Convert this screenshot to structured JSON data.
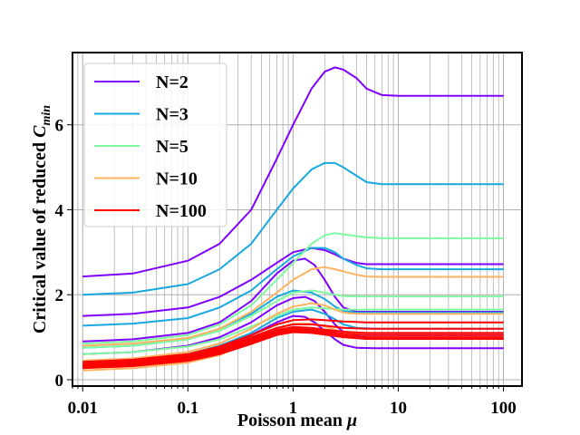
{
  "chart_data": {
    "type": "line",
    "title": "",
    "xlabel": "Poisson mean μ",
    "ylabel": "Critical value of reduced C_min",
    "ylabel_parts": {
      "text": "Critical value of reduced ",
      "math": "C",
      "sub": "min"
    },
    "xlabel_parts": {
      "text": "Poisson mean ",
      "math": "μ"
    },
    "xscale": "log",
    "xlim": [
      0.008,
      150
    ],
    "ylim": [
      -0.15,
      7.7
    ],
    "xticks": [
      {
        "value": 0.01,
        "label": "0.01"
      },
      {
        "value": 0.1,
        "label": "0.1"
      },
      {
        "value": 1,
        "label": "1"
      },
      {
        "value": 10,
        "label": "10"
      },
      {
        "value": 100,
        "label": "100"
      }
    ],
    "yticks": [
      {
        "value": 0,
        "label": "0"
      },
      {
        "value": 2,
        "label": "2"
      },
      {
        "value": 4,
        "label": "4"
      },
      {
        "value": 6,
        "label": "6"
      }
    ],
    "grid": true,
    "legend_position": "upper-left",
    "groups": [
      {
        "name": "N=2",
        "color": "#8000ff",
        "curves": [
          {
            "x": [
              0.01,
              0.03,
              0.1,
              0.2,
              0.4,
              0.7,
              1,
              1.5,
              2,
              2.5,
              3,
              4,
              5,
              7,
              10,
              20,
              100
            ],
            "y": [
              2.43,
              2.5,
              2.8,
              3.2,
              4.0,
              5.2,
              6.0,
              6.85,
              7.25,
              7.35,
              7.3,
              7.1,
              6.85,
              6.7,
              6.68,
              6.68,
              6.68
            ]
          },
          {
            "x": [
              0.01,
              0.03,
              0.1,
              0.2,
              0.4,
              0.7,
              1,
              1.5,
              2,
              2.5,
              3,
              4,
              5,
              7,
              10,
              20,
              100
            ],
            "y": [
              1.5,
              1.55,
              1.7,
              1.95,
              2.35,
              2.75,
              3.0,
              3.1,
              3.05,
              2.95,
              2.85,
              2.75,
              2.72,
              2.72,
              2.72,
              2.72,
              2.72
            ]
          },
          {
            "x": [
              0.01,
              0.03,
              0.1,
              0.2,
              0.4,
              0.7,
              1,
              1.3,
              1.6,
              2,
              2.5,
              3,
              4,
              6,
              10,
              100
            ],
            "y": [
              0.9,
              0.95,
              1.1,
              1.35,
              1.85,
              2.5,
              2.8,
              2.85,
              2.7,
              2.35,
              1.95,
              1.7,
              1.6,
              1.6,
              1.6,
              1.6
            ]
          },
          {
            "x": [
              0.01,
              0.03,
              0.1,
              0.2,
              0.4,
              0.7,
              1,
              1.3,
              1.6,
              2,
              2.5,
              3,
              4,
              6,
              10,
              100
            ],
            "y": [
              0.6,
              0.65,
              0.8,
              1.0,
              1.35,
              1.75,
              1.92,
              1.95,
              1.85,
              1.6,
              1.3,
              1.12,
              1.05,
              1.05,
              1.05,
              1.05
            ]
          },
          {
            "x": [
              0.01,
              0.03,
              0.1,
              0.2,
              0.4,
              0.7,
              1,
              1.3,
              1.6,
              2,
              2.5,
              3,
              4,
              6,
              10,
              100
            ],
            "y": [
              0.35,
              0.4,
              0.55,
              0.75,
              1.05,
              1.35,
              1.5,
              1.48,
              1.35,
              1.15,
              0.95,
              0.82,
              0.75,
              0.74,
              0.74,
              0.74
            ]
          }
        ]
      },
      {
        "name": "N=3",
        "color": "#18a8e0",
        "curves": [
          {
            "x": [
              0.01,
              0.03,
              0.1,
              0.2,
              0.4,
              0.7,
              1,
              1.5,
              2,
              2.5,
              3,
              4,
              5,
              7,
              10,
              20,
              100
            ],
            "y": [
              2.0,
              2.05,
              2.25,
              2.6,
              3.2,
              4.0,
              4.5,
              4.95,
              5.1,
              5.1,
              5.0,
              4.8,
              4.65,
              4.6,
              4.6,
              4.6,
              4.6
            ]
          },
          {
            "x": [
              0.01,
              0.03,
              0.1,
              0.2,
              0.4,
              0.7,
              1,
              1.5,
              2,
              2.5,
              3,
              4,
              5,
              7,
              10,
              20,
              100
            ],
            "y": [
              1.27,
              1.32,
              1.45,
              1.7,
              2.1,
              2.6,
              2.9,
              3.1,
              3.1,
              3.0,
              2.85,
              2.7,
              2.62,
              2.6,
              2.6,
              2.6,
              2.6
            ]
          },
          {
            "x": [
              0.01,
              0.03,
              0.1,
              0.2,
              0.4,
              0.7,
              1,
              1.5,
              2,
              2.5,
              3,
              4,
              6,
              10,
              100
            ],
            "y": [
              0.75,
              0.8,
              0.95,
              1.2,
              1.55,
              1.95,
              2.1,
              2.05,
              1.9,
              1.72,
              1.62,
              1.58,
              1.58,
              1.58,
              1.58
            ]
          },
          {
            "x": [
              0.01,
              0.03,
              0.1,
              0.2,
              0.4,
              0.7,
              1,
              1.5,
              2,
              2.5,
              3,
              4,
              6,
              10,
              100
            ],
            "y": [
              0.42,
              0.47,
              0.6,
              0.8,
              1.1,
              1.45,
              1.6,
              1.65,
              1.55,
              1.42,
              1.3,
              1.22,
              1.2,
              1.2,
              1.2
            ]
          }
        ]
      },
      {
        "name": "N=5",
        "color": "#7ffaa0",
        "curves": [
          {
            "x": [
              0.01,
              0.03,
              0.1,
              0.2,
              0.4,
              0.7,
              1,
              1.5,
              2,
              2.5,
              3,
              4,
              5,
              7,
              10,
              20,
              100
            ],
            "y": [
              0.85,
              0.9,
              1.05,
              1.3,
              1.75,
              2.35,
              2.75,
              3.2,
              3.4,
              3.45,
              3.42,
              3.38,
              3.35,
              3.33,
              3.33,
              3.33,
              3.33
            ]
          },
          {
            "x": [
              0.01,
              0.03,
              0.1,
              0.2,
              0.4,
              0.7,
              1,
              1.5,
              2,
              2.5,
              3,
              4,
              6,
              10,
              100
            ],
            "y": [
              0.75,
              0.8,
              0.95,
              1.15,
              1.5,
              1.85,
              2.05,
              2.1,
              2.05,
              2.0,
              1.97,
              1.96,
              1.96,
              1.96,
              1.96
            ]
          },
          {
            "x": [
              0.01,
              0.03,
              0.1,
              0.2,
              0.4,
              0.7,
              1,
              1.5,
              2,
              2.5,
              3,
              4,
              6,
              10,
              100
            ],
            "y": [
              0.6,
              0.65,
              0.78,
              0.95,
              1.25,
              1.5,
              1.65,
              1.7,
              1.68,
              1.66,
              1.65,
              1.65,
              1.65,
              1.65,
              1.65
            ]
          }
        ]
      },
      {
        "name": "N=10",
        "color": "#ffb360",
        "curves": [
          {
            "x": [
              0.01,
              0.03,
              0.1,
              0.2,
              0.4,
              0.7,
              1,
              1.5,
              2,
              2.5,
              3,
              4,
              5,
              7,
              10,
              20,
              100
            ],
            "y": [
              0.8,
              0.85,
              0.98,
              1.2,
              1.6,
              2.05,
              2.35,
              2.6,
              2.65,
              2.6,
              2.55,
              2.47,
              2.43,
              2.42,
              2.42,
              2.42,
              2.42
            ]
          },
          {
            "x": [
              0.01,
              0.03,
              0.1,
              0.2,
              0.4,
              0.7,
              1,
              1.5,
              2,
              2.5,
              3,
              4,
              6,
              10,
              100
            ],
            "y": [
              0.45,
              0.5,
              0.65,
              0.85,
              1.2,
              1.55,
              1.72,
              1.8,
              1.75,
              1.65,
              1.58,
              1.55,
              1.55,
              1.55,
              1.55
            ]
          },
          {
            "x": [
              0.01,
              0.03,
              0.1,
              0.2,
              0.4,
              0.7,
              1,
              1.5,
              2,
              2.5,
              3,
              4,
              6,
              10,
              100
            ],
            "y": [
              0.22,
              0.27,
              0.4,
              0.58,
              0.9,
              1.2,
              1.32,
              1.32,
              1.25,
              1.18,
              1.12,
              1.1,
              1.1,
              1.1,
              1.1
            ]
          }
        ]
      },
      {
        "name": "N=100",
        "color": "#ff0000",
        "curves": [
          {
            "x": [
              0.01,
              0.03,
              0.1,
              0.2,
              0.4,
              0.7,
              1,
              1.5,
              2,
              3,
              5,
              10,
              100
            ],
            "y": [
              0.42,
              0.47,
              0.6,
              0.78,
              1.05,
              1.3,
              1.4,
              1.42,
              1.4,
              1.37,
              1.35,
              1.35,
              1.35
            ]
          },
          {
            "x": [
              0.01,
              0.03,
              0.1,
              0.2,
              0.4,
              0.7,
              1,
              1.5,
              2,
              3,
              5,
              10,
              100
            ],
            "y": [
              0.38,
              0.43,
              0.56,
              0.74,
              1.0,
              1.22,
              1.3,
              1.3,
              1.27,
              1.22,
              1.2,
              1.2,
              1.2
            ]
          },
          {
            "x": [
              0.01,
              0.03,
              0.1,
              0.2,
              0.4,
              0.7,
              1,
              1.5,
              2,
              3,
              5,
              10,
              100
            ],
            "y": [
              0.35,
              0.4,
              0.53,
              0.7,
              0.96,
              1.17,
              1.24,
              1.22,
              1.18,
              1.13,
              1.1,
              1.1,
              1.1
            ]
          },
          {
            "x": [
              0.01,
              0.03,
              0.1,
              0.2,
              0.4,
              0.7,
              1,
              1.5,
              2,
              3,
              5,
              10,
              100
            ],
            "y": [
              0.33,
              0.38,
              0.5,
              0.67,
              0.92,
              1.13,
              1.2,
              1.18,
              1.14,
              1.08,
              1.05,
              1.05,
              1.05
            ]
          },
          {
            "x": [
              0.01,
              0.03,
              0.1,
              0.2,
              0.4,
              0.7,
              1,
              1.5,
              2,
              3,
              5,
              10,
              100
            ],
            "y": [
              0.3,
              0.35,
              0.47,
              0.64,
              0.88,
              1.09,
              1.16,
              1.14,
              1.1,
              1.04,
              1.0,
              1.0,
              1.0
            ]
          },
          {
            "x": [
              0.01,
              0.03,
              0.1,
              0.2,
              0.4,
              0.7,
              1,
              1.5,
              2,
              3,
              5,
              10,
              100
            ],
            "y": [
              0.27,
              0.32,
              0.44,
              0.6,
              0.84,
              1.05,
              1.12,
              1.1,
              1.06,
              1.0,
              0.96,
              0.96,
              0.96
            ]
          }
        ]
      }
    ],
    "legend": [
      {
        "label": "N=2",
        "color": "#8000ff"
      },
      {
        "label": "N=3",
        "color": "#18a8e0"
      },
      {
        "label": "N=5",
        "color": "#7ffaa0"
      },
      {
        "label": "N=10",
        "color": "#ffb360"
      },
      {
        "label": "N=100",
        "color": "#ff0000"
      }
    ]
  }
}
